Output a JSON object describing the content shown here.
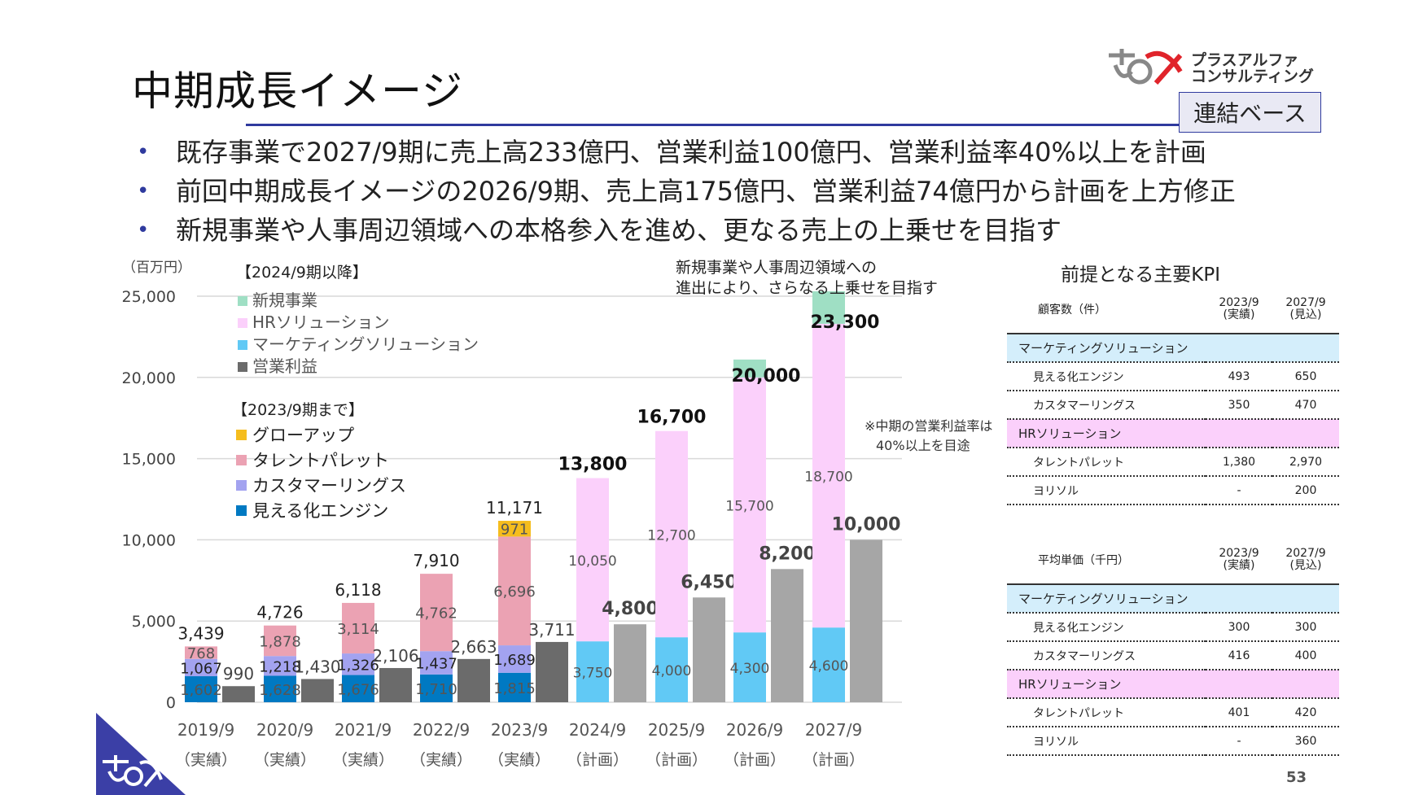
{
  "header": {
    "title": "中期成長イメージ",
    "company": {
      "line1": "プラスアルファ",
      "line2": "コンサルティング"
    },
    "badge": "連結ベース"
  },
  "bullets": [
    "既存事業で2027/9期に売上高233億円、営業利益100億円、営業利益率40%以上を計画",
    "前回中期成長イメージの2026/9期、売上高175億円、営業利益74億円から計画を上方修正",
    "新規事業や人事周辺領域への本格参入を進め、更なる売上の上乗せを目指す"
  ],
  "chart_data": {
    "type": "bar",
    "unit_label": "（百万円）",
    "ylim": [
      0,
      25000
    ],
    "yticks": [
      "0",
      "5,000",
      "10,000",
      "15,000",
      "20,000",
      "25,000"
    ],
    "ytick_values": [
      0,
      5000,
      10000,
      15000,
      20000,
      25000
    ],
    "grid": true,
    "legend_header_new": "【2024/9期以降】",
    "legend_header_old": "【2023/9期まで】",
    "legend_new": [
      {
        "name": "新規事業",
        "color": "#9fdfc4"
      },
      {
        "name": "HRソリューション",
        "color": "#fbd0fb"
      },
      {
        "name": "マーケティングソリューション",
        "color": "#61c9f5"
      },
      {
        "name": "営業利益",
        "color": "#6b6b6b"
      }
    ],
    "legend_old": [
      {
        "name": "グローアップ",
        "color": "#f5bd1e"
      },
      {
        "name": "タレントパレット",
        "color": "#eba2b3"
      },
      {
        "name": "カスタマーリングス",
        "color": "#a3a3f0"
      },
      {
        "name": "見える化エンジン",
        "color": "#0079c2"
      }
    ],
    "periods": [
      {
        "year": "2019/9",
        "status": "（実績）"
      },
      {
        "year": "2020/9",
        "status": "（実績）"
      },
      {
        "year": "2021/9",
        "status": "（実績）"
      },
      {
        "year": "2022/9",
        "status": "（実績）"
      },
      {
        "year": "2023/9",
        "status": "（実績）"
      },
      {
        "year": "2024/9",
        "status": "（計画）"
      },
      {
        "year": "2025/9",
        "status": "（計画）"
      },
      {
        "year": "2026/9",
        "status": "（計画）"
      },
      {
        "year": "2027/9",
        "status": "（計画）"
      }
    ],
    "revenue_old": [
      {
        "mieru": 1602,
        "customer": 1067,
        "talent": 768,
        "grow": 0,
        "total": 3439
      },
      {
        "mieru": 1628,
        "customer": 1218,
        "talent": 1878,
        "grow": 0,
        "total": 4726
      },
      {
        "mieru": 1676,
        "customer": 1326,
        "talent": 3114,
        "grow": 0,
        "total": 6118
      },
      {
        "mieru": 1710,
        "customer": 1437,
        "talent": 4762,
        "grow": 0,
        "total": 7910
      },
      {
        "mieru": 1815,
        "customer": 1689,
        "talent": 6696,
        "grow": 971,
        "total": 11171
      }
    ],
    "revenue_old_labels": [
      {
        "mieru": "1,602",
        "customer": "1,067",
        "talent": "768",
        "grow": "",
        "total": "3,439"
      },
      {
        "mieru": "1,628",
        "customer": "1,218",
        "talent": "1,878",
        "grow": "",
        "total": "4,726"
      },
      {
        "mieru": "1,676",
        "customer": "1,326",
        "talent": "3,114",
        "grow": "",
        "total": "6,118"
      },
      {
        "mieru": "1,710",
        "customer": "1,437",
        "talent": "4,762",
        "grow": "",
        "total": "7,910"
      },
      {
        "mieru": "1,815",
        "customer": "1,689",
        "talent": "6,696",
        "grow": "971",
        "total": "11,171"
      }
    ],
    "revenue_new": [
      {
        "marketing": 3750,
        "hr": 10050,
        "new": 0,
        "total": 13800
      },
      {
        "marketing": 4000,
        "hr": 12700,
        "new": 0,
        "total": 16700
      },
      {
        "marketing": 4300,
        "hr": 15700,
        "new": 1100,
        "total": 20000
      },
      {
        "marketing": 4600,
        "hr": 18700,
        "new": 2000,
        "total": 23300
      }
    ],
    "revenue_new_labels": [
      {
        "marketing": "3,750",
        "hr": "10,050",
        "total": "13,800"
      },
      {
        "marketing": "4,000",
        "hr": "12,700",
        "total": "16,700"
      },
      {
        "marketing": "4,300",
        "hr": "15,700",
        "total": "20,000"
      },
      {
        "marketing": "4,600",
        "hr": "18,700",
        "total": "23,300"
      }
    ],
    "operating_profit": [
      990,
      1430,
      2106,
      2663,
      3711,
      4800,
      6450,
      8200,
      10000
    ],
    "operating_profit_labels": [
      "990",
      "1,430",
      "2,106",
      "2,663",
      "3,711",
      "4,800",
      "6,450",
      "8,200",
      "10,000"
    ],
    "annotation_new_business": [
      "新規事業や人事周辺領域への",
      "進出により、さらなる上乗せを目指す"
    ],
    "annotation_margin": [
      "※中期の営業利益率は",
      "40%以上を目途"
    ]
  },
  "kpi": {
    "title": "前提となる主要KPI",
    "col1": "2023/9",
    "col1_sub": "(実績)",
    "col2": "2027/9",
    "col2_sub": "(見込)",
    "customers": {
      "header": "顧客数（件）",
      "rows": [
        {
          "type": "cat",
          "label": "マーケティングソリューション",
          "color": "#d4eefb"
        },
        {
          "type": "row",
          "label": "見える化エンジン",
          "a": "493",
          "b": "650"
        },
        {
          "type": "row",
          "label": "カスタマーリングス",
          "a": "350",
          "b": "470"
        },
        {
          "type": "cat",
          "label": "HRソリューション",
          "color": "#fbd0fb"
        },
        {
          "type": "row",
          "label": "タレントパレット",
          "a": "1,380",
          "b": "2,970"
        },
        {
          "type": "row",
          "label": "ヨリソル",
          "a": "-",
          "b": "200"
        }
      ]
    },
    "price": {
      "header": "平均単価（千円）",
      "rows": [
        {
          "type": "cat",
          "label": "マーケティングソリューション",
          "color": "#d4eefb"
        },
        {
          "type": "row",
          "label": "見える化エンジン",
          "a": "300",
          "b": "300"
        },
        {
          "type": "row",
          "label": "カスタマーリングス",
          "a": "416",
          "b": "400"
        },
        {
          "type": "cat",
          "label": "HRソリューション",
          "color": "#fbd0fb"
        },
        {
          "type": "row",
          "label": "タレントパレット",
          "a": "401",
          "b": "420"
        },
        {
          "type": "row",
          "label": "ヨリソル",
          "a": "-",
          "b": "360"
        }
      ]
    }
  },
  "page_number": "53"
}
